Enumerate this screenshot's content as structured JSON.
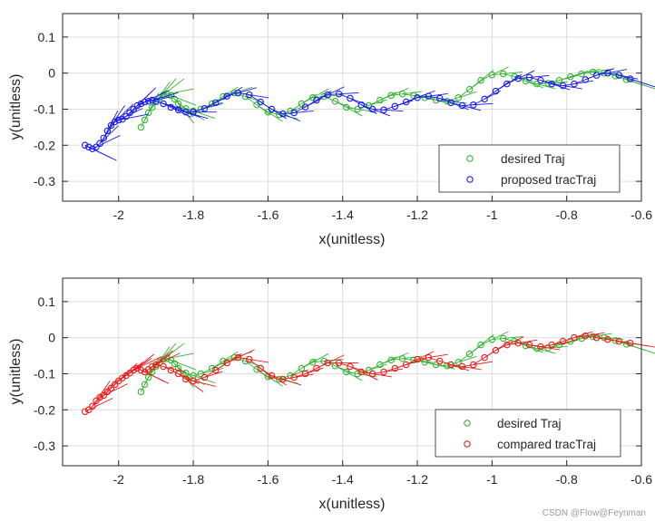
{
  "watermark": "CSDN @Flow@Feynman",
  "colors": {
    "desired": "#33b533",
    "proposed": "#1a1aee",
    "compared": "#ee1a1a",
    "grid": "#dedede",
    "axis": "#262626"
  },
  "chart_data": [
    {
      "type": "scatter",
      "title": "",
      "xlabel": "x(unitless)",
      "ylabel": "y(unitless)",
      "xlim": [
        -2.15,
        -0.6
      ],
      "ylim": [
        -0.355,
        0.165
      ],
      "xticks": [
        -2,
        -1.8,
        -1.6,
        -1.4,
        -1.2,
        -1,
        -0.8,
        -0.6
      ],
      "xtick_labels": [
        "-2",
        "-1.8",
        "-1.6",
        "-1.4",
        "-1.2",
        "-1",
        "-0.8",
        "-0.6"
      ],
      "yticks": [
        0.1,
        0,
        -0.1,
        -0.2,
        -0.3
      ],
      "ytick_labels": [
        "0.1",
        "0",
        "-0.1",
        "-0.2",
        "-0.3"
      ],
      "grid": true,
      "legend_position": "bottom-right",
      "series": [
        {
          "name": "desired Traj",
          "color_key": "desired",
          "marker": "circle",
          "x": [
            -1.94,
            -1.93,
            -1.92,
            -1.91,
            -1.9,
            -1.89,
            -1.88,
            -1.87,
            -1.86,
            -1.85,
            -1.84,
            -1.82,
            -1.8,
            -1.78,
            -1.75,
            -1.72,
            -1.69,
            -1.66,
            -1.63,
            -1.6,
            -1.57,
            -1.54,
            -1.51,
            -1.48,
            -1.45,
            -1.42,
            -1.39,
            -1.36,
            -1.33,
            -1.3,
            -1.27,
            -1.24,
            -1.21,
            -1.18,
            -1.15,
            -1.12,
            -1.09,
            -1.06,
            -1.03,
            -1.0,
            -0.97,
            -0.94,
            -0.91,
            -0.88,
            -0.85,
            -0.82,
            -0.79,
            -0.76,
            -0.73,
            -0.7,
            -0.67,
            -0.64
          ],
          "y": [
            -0.15,
            -0.13,
            -0.11,
            -0.095,
            -0.08,
            -0.068,
            -0.06,
            -0.058,
            -0.062,
            -0.072,
            -0.085,
            -0.098,
            -0.105,
            -0.1,
            -0.085,
            -0.065,
            -0.055,
            -0.065,
            -0.088,
            -0.108,
            -0.115,
            -0.105,
            -0.085,
            -0.068,
            -0.065,
            -0.078,
            -0.095,
            -0.1,
            -0.09,
            -0.075,
            -0.062,
            -0.058,
            -0.062,
            -0.068,
            -0.075,
            -0.078,
            -0.068,
            -0.045,
            -0.02,
            -0.005,
            -0.002,
            -0.01,
            -0.022,
            -0.03,
            -0.028,
            -0.02,
            -0.01,
            -0.002,
            0.003,
            0.0,
            -0.008,
            -0.018
          ]
        },
        {
          "name": "proposed tracTraj",
          "color_key": "proposed",
          "marker": "circle",
          "x": [
            -2.09,
            -2.08,
            -2.07,
            -2.06,
            -2.05,
            -2.04,
            -2.03,
            -2.02,
            -2.01,
            -2.0,
            -1.99,
            -1.98,
            -1.97,
            -1.96,
            -1.95,
            -1.94,
            -1.93,
            -1.92,
            -1.91,
            -1.9,
            -1.88,
            -1.86,
            -1.84,
            -1.82,
            -1.8,
            -1.77,
            -1.74,
            -1.71,
            -1.68,
            -1.65,
            -1.62,
            -1.59,
            -1.56,
            -1.53,
            -1.5,
            -1.47,
            -1.44,
            -1.41,
            -1.38,
            -1.35,
            -1.32,
            -1.29,
            -1.26,
            -1.23,
            -1.2,
            -1.17,
            -1.14,
            -1.11,
            -1.08,
            -1.05,
            -1.02,
            -0.99,
            -0.96,
            -0.93,
            -0.9,
            -0.87,
            -0.84,
            -0.81,
            -0.78,
            -0.75,
            -0.72,
            -0.69,
            -0.66,
            -0.63
          ],
          "y": [
            -0.2,
            -0.205,
            -0.21,
            -0.205,
            -0.195,
            -0.18,
            -0.16,
            -0.145,
            -0.135,
            -0.13,
            -0.128,
            -0.12,
            -0.11,
            -0.1,
            -0.09,
            -0.085,
            -0.08,
            -0.078,
            -0.075,
            -0.078,
            -0.085,
            -0.095,
            -0.102,
            -0.108,
            -0.108,
            -0.098,
            -0.082,
            -0.064,
            -0.055,
            -0.06,
            -0.08,
            -0.1,
            -0.113,
            -0.11,
            -0.094,
            -0.075,
            -0.06,
            -0.058,
            -0.07,
            -0.088,
            -0.1,
            -0.102,
            -0.092,
            -0.08,
            -0.068,
            -0.064,
            -0.07,
            -0.082,
            -0.09,
            -0.088,
            -0.072,
            -0.05,
            -0.03,
            -0.015,
            -0.012,
            -0.02,
            -0.03,
            -0.035,
            -0.03,
            -0.018,
            -0.006,
            0.0,
            -0.006,
            -0.016
          ]
        }
      ]
    },
    {
      "type": "scatter",
      "title": "",
      "xlabel": "x(unitless)",
      "ylabel": "y(unitless)",
      "xlim": [
        -2.15,
        -0.6
      ],
      "ylim": [
        -0.355,
        0.165
      ],
      "xticks": [
        -2,
        -1.8,
        -1.6,
        -1.4,
        -1.2,
        -1,
        -0.8,
        -0.6
      ],
      "xtick_labels": [
        "-2",
        "-1.8",
        "-1.6",
        "-1.4",
        "-1.2",
        "-1",
        "-0.8",
        "-0.6"
      ],
      "yticks": [
        0.1,
        0,
        -0.1,
        -0.2,
        -0.3
      ],
      "ytick_labels": [
        "0.1",
        "0",
        "-0.1",
        "-0.2",
        "-0.3"
      ],
      "grid": true,
      "legend_position": "bottom-right",
      "series": [
        {
          "name": "desired Traj",
          "color_key": "desired",
          "marker": "circle",
          "x": [
            -1.94,
            -1.93,
            -1.92,
            -1.91,
            -1.9,
            -1.89,
            -1.88,
            -1.87,
            -1.86,
            -1.85,
            -1.84,
            -1.82,
            -1.8,
            -1.78,
            -1.75,
            -1.72,
            -1.69,
            -1.66,
            -1.63,
            -1.6,
            -1.57,
            -1.54,
            -1.51,
            -1.48,
            -1.45,
            -1.42,
            -1.39,
            -1.36,
            -1.33,
            -1.3,
            -1.27,
            -1.24,
            -1.21,
            -1.18,
            -1.15,
            -1.12,
            -1.09,
            -1.06,
            -1.03,
            -1.0,
            -0.97,
            -0.94,
            -0.91,
            -0.88,
            -0.85,
            -0.82,
            -0.79,
            -0.76,
            -0.73,
            -0.7,
            -0.67,
            -0.64
          ],
          "y": [
            -0.15,
            -0.13,
            -0.11,
            -0.095,
            -0.08,
            -0.068,
            -0.06,
            -0.058,
            -0.062,
            -0.072,
            -0.085,
            -0.098,
            -0.105,
            -0.1,
            -0.085,
            -0.065,
            -0.055,
            -0.065,
            -0.088,
            -0.108,
            -0.115,
            -0.105,
            -0.085,
            -0.068,
            -0.065,
            -0.078,
            -0.095,
            -0.1,
            -0.09,
            -0.075,
            -0.062,
            -0.058,
            -0.062,
            -0.068,
            -0.075,
            -0.078,
            -0.068,
            -0.045,
            -0.02,
            -0.005,
            -0.002,
            -0.01,
            -0.022,
            -0.03,
            -0.028,
            -0.02,
            -0.01,
            -0.002,
            0.003,
            0.0,
            -0.008,
            -0.018
          ]
        },
        {
          "name": "compared tracTraj",
          "color_key": "compared",
          "marker": "circle",
          "x": [
            -2.09,
            -2.08,
            -2.07,
            -2.06,
            -2.05,
            -2.04,
            -2.03,
            -2.02,
            -2.01,
            -2.0,
            -1.99,
            -1.98,
            -1.97,
            -1.96,
            -1.95,
            -1.94,
            -1.93,
            -1.92,
            -1.91,
            -1.9,
            -1.88,
            -1.86,
            -1.84,
            -1.82,
            -1.8,
            -1.77,
            -1.74,
            -1.71,
            -1.68,
            -1.65,
            -1.62,
            -1.59,
            -1.56,
            -1.53,
            -1.5,
            -1.47,
            -1.44,
            -1.41,
            -1.38,
            -1.35,
            -1.32,
            -1.29,
            -1.26,
            -1.23,
            -1.2,
            -1.17,
            -1.14,
            -1.11,
            -1.08,
            -1.05,
            -1.02,
            -0.99,
            -0.96,
            -0.93,
            -0.9,
            -0.87,
            -0.84,
            -0.81,
            -0.78,
            -0.75,
            -0.72,
            -0.69,
            -0.66,
            -0.63
          ],
          "y": [
            -0.205,
            -0.2,
            -0.19,
            -0.175,
            -0.165,
            -0.16,
            -0.15,
            -0.14,
            -0.13,
            -0.12,
            -0.112,
            -0.105,
            -0.098,
            -0.09,
            -0.085,
            -0.09,
            -0.095,
            -0.088,
            -0.08,
            -0.075,
            -0.08,
            -0.09,
            -0.1,
            -0.115,
            -0.12,
            -0.11,
            -0.09,
            -0.07,
            -0.055,
            -0.06,
            -0.085,
            -0.105,
            -0.115,
            -0.11,
            -0.1,
            -0.085,
            -0.07,
            -0.07,
            -0.08,
            -0.095,
            -0.1,
            -0.095,
            -0.085,
            -0.075,
            -0.06,
            -0.055,
            -0.065,
            -0.075,
            -0.08,
            -0.075,
            -0.055,
            -0.035,
            -0.02,
            -0.015,
            -0.02,
            -0.025,
            -0.02,
            -0.01,
            0.0,
            0.005,
            0.0,
            -0.005,
            -0.01,
            -0.015
          ]
        }
      ]
    }
  ]
}
